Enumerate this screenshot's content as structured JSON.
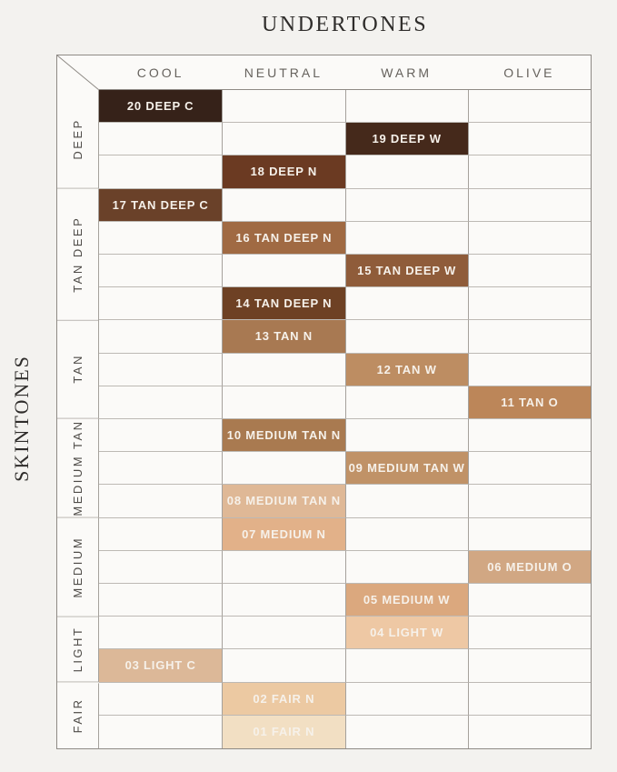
{
  "chart_data": {
    "type": "heatmap",
    "title": "UNDERTONES",
    "ylabel": "SKINTONES",
    "legend": false,
    "columns": [
      "COOL",
      "NEUTRAL",
      "WARM",
      "OLIVE"
    ],
    "row_groups": [
      {
        "label": "DEEP",
        "rows": 3
      },
      {
        "label": "TAN DEEP",
        "rows": 4
      },
      {
        "label": "TAN",
        "rows": 3
      },
      {
        "label": "MEDIUM TAN",
        "rows": 3
      },
      {
        "label": "MEDIUM",
        "rows": 3
      },
      {
        "label": "LIGHT",
        "rows": 2
      },
      {
        "label": "FAIR",
        "rows": 2
      }
    ],
    "shades": [
      {
        "row": 1,
        "undertone": "COOL",
        "label": "20 DEEP C",
        "hex": "#362219"
      },
      {
        "row": 2,
        "undertone": "WARM",
        "label": "19 DEEP W",
        "hex": "#45291b"
      },
      {
        "row": 3,
        "undertone": "NEUTRAL",
        "label": "18 DEEP N",
        "hex": "#6b3a22"
      },
      {
        "row": 4,
        "undertone": "COOL",
        "label": "17 TAN DEEP C",
        "hex": "#6a4129"
      },
      {
        "row": 5,
        "undertone": "NEUTRAL",
        "label": "16 TAN DEEP N",
        "hex": "#a06a43"
      },
      {
        "row": 6,
        "undertone": "WARM",
        "label": "15 TAN DEEP W",
        "hex": "#8f5c3a"
      },
      {
        "row": 7,
        "undertone": "NEUTRAL",
        "label": "14 TAN DEEP N",
        "hex": "#6e4124"
      },
      {
        "row": 8,
        "undertone": "NEUTRAL",
        "label": "13 TAN N",
        "hex": "#a87952"
      },
      {
        "row": 9,
        "undertone": "WARM",
        "label": "12 TAN W",
        "hex": "#bd8d62"
      },
      {
        "row": 10,
        "undertone": "OLIVE",
        "label": "11 TAN O",
        "hex": "#bc8659"
      },
      {
        "row": 11,
        "undertone": "NEUTRAL",
        "label": "10 MEDIUM TAN N",
        "hex": "#a97a50"
      },
      {
        "row": 12,
        "undertone": "WARM",
        "label": "09 MEDIUM TAN W",
        "hex": "#c09267"
      },
      {
        "row": 13,
        "undertone": "NEUTRAL",
        "label": "08 MEDIUM TAN N",
        "hex": "#dfb896"
      },
      {
        "row": 14,
        "undertone": "NEUTRAL",
        "label": "07 MEDIUM N",
        "hex": "#e2b189"
      },
      {
        "row": 15,
        "undertone": "OLIVE",
        "label": "06 MEDIUM O",
        "hex": "#d1a783"
      },
      {
        "row": 16,
        "undertone": "WARM",
        "label": "05 MEDIUM W",
        "hex": "#dba87e"
      },
      {
        "row": 17,
        "undertone": "WARM",
        "label": "04 LIGHT W",
        "hex": "#eec8a4"
      },
      {
        "row": 18,
        "undertone": "COOL",
        "label": "03 LIGHT C",
        "hex": "#dcb898"
      },
      {
        "row": 19,
        "undertone": "NEUTRAL",
        "label": "02 FAIR N",
        "hex": "#ecc9a2"
      },
      {
        "row": 20,
        "undertone": "NEUTRAL",
        "label": "01 FAIR N",
        "hex": "#f2dfc3"
      }
    ],
    "colors": {
      "page_bg": "#f3f2ef",
      "cell_bg": "#fbfaf8",
      "outer_border": "#8e8a85",
      "column_line": "#a5a19c",
      "row_line": "#bdb9b4",
      "title_text": "#2f2d2b",
      "header_text": "#66625d",
      "group_label_text": "#4f4c48",
      "shade_text": "#f6f1ea"
    }
  }
}
